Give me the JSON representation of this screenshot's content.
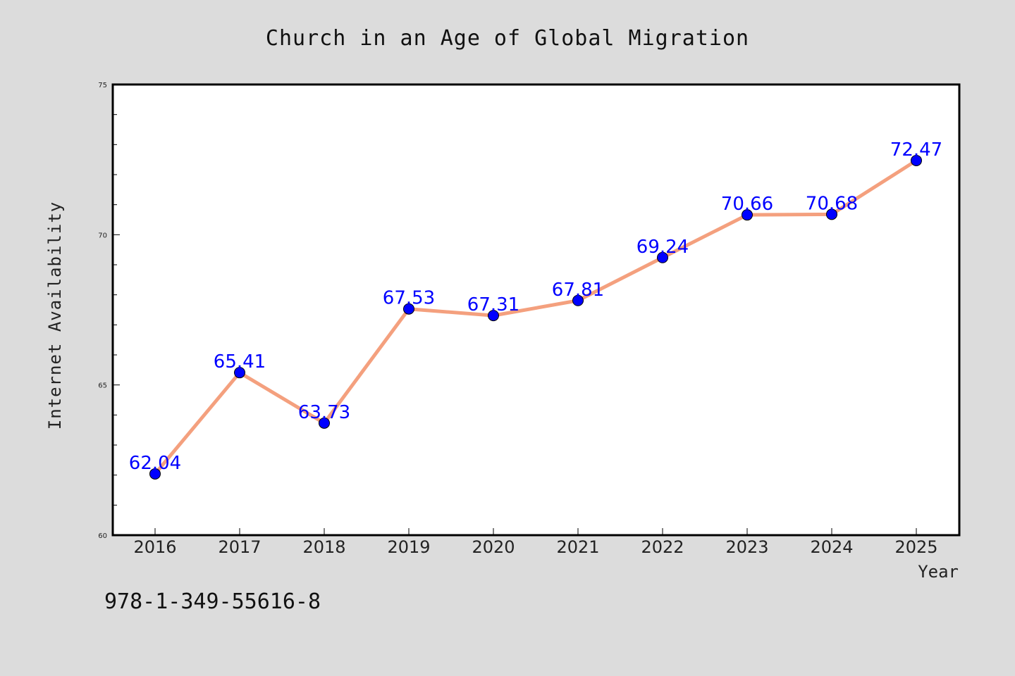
{
  "chart_data": {
    "type": "line",
    "title": "Church in an Age of Global Migration",
    "xlabel": "Year",
    "ylabel": "Internet Availability",
    "x": [
      "2016",
      "2017",
      "2018",
      "2019",
      "2020",
      "2021",
      "2022",
      "2023",
      "2024",
      "2025"
    ],
    "values": [
      62.04,
      65.41,
      63.73,
      67.53,
      67.31,
      67.81,
      69.24,
      70.66,
      70.68,
      72.47
    ],
    "data_labels": [
      "62.04",
      "65.41",
      "63.73",
      "67.53",
      "67.31",
      "67.81",
      "69.24",
      "70.66",
      "70.68",
      "72.47"
    ],
    "ylim": [
      60,
      75
    ],
    "y_ticks": [
      60,
      65,
      70,
      75
    ],
    "y_tick_labels": [
      "60",
      "65",
      "70",
      "75"
    ],
    "grid": false,
    "legend": "none",
    "line_color": "#f4a07e",
    "marker_color": "#0000ff",
    "label_color": "#0000ff",
    "background": "#dcdcdc"
  },
  "footer": {
    "isbn": "978-1-349-55616-8"
  }
}
